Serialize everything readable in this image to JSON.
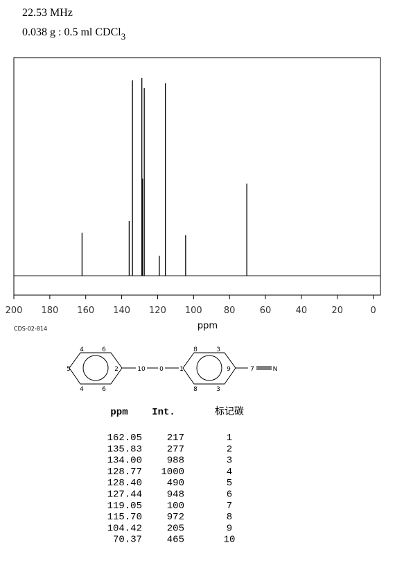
{
  "chart_data": {
    "type": "stem",
    "title": "22.53 MHz",
    "subtitle": "0.038 g : 0.5 ml CDCl",
    "subtitle_subscript": "3",
    "x": [
      162.05,
      135.83,
      134.0,
      128.77,
      128.4,
      127.44,
      119.05,
      115.7,
      104.42,
      70.37
    ],
    "values": [
      217,
      277,
      988,
      1000,
      490,
      948,
      100,
      972,
      205,
      465
    ],
    "xlim": [
      200,
      -4
    ],
    "ylim": [
      -98,
      1102
    ],
    "xticks": [
      200,
      180,
      160,
      140,
      120,
      100,
      80,
      60,
      40,
      20,
      0
    ],
    "xlabel": "ppm",
    "color": "#000000",
    "note": "CDS-02-814"
  },
  "structure": {
    "labels": [
      "4",
      "6",
      "5",
      "2",
      "4",
      "6",
      "10",
      "0",
      "1",
      "8",
      "3",
      "9",
      "8",
      "3",
      "7",
      "N"
    ]
  },
  "table": {
    "columns": [
      "ppm",
      "Int.",
      "标记碳"
    ],
    "rows": [
      [
        "162.05",
        "217",
        "1"
      ],
      [
        "135.83",
        "277",
        "2"
      ],
      [
        "134.00",
        "988",
        "3"
      ],
      [
        "128.77",
        "1000",
        "4"
      ],
      [
        "128.40",
        "490",
        "5"
      ],
      [
        "127.44",
        "948",
        "6"
      ],
      [
        "119.05",
        "100",
        "7"
      ],
      [
        "115.70",
        "972",
        "8"
      ],
      [
        "104.42",
        "205",
        "9"
      ],
      [
        "70.37",
        "465",
        "10"
      ]
    ]
  }
}
